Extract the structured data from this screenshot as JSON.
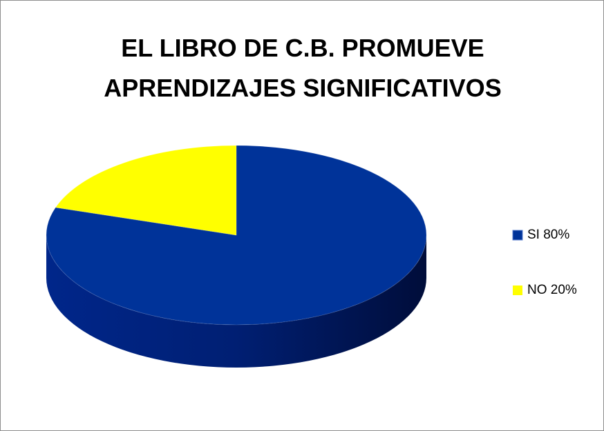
{
  "chart_data": {
    "type": "pie",
    "title": "EL LIBRO DE C.B. PROMUEVE APRENDIZAJES SIGNIFICATIVOS",
    "categories": [
      "SI 80%",
      "NO 20%"
    ],
    "values": [
      80,
      20
    ],
    "colors": [
      "#003399",
      "#ffff00"
    ],
    "legend": "right"
  }
}
